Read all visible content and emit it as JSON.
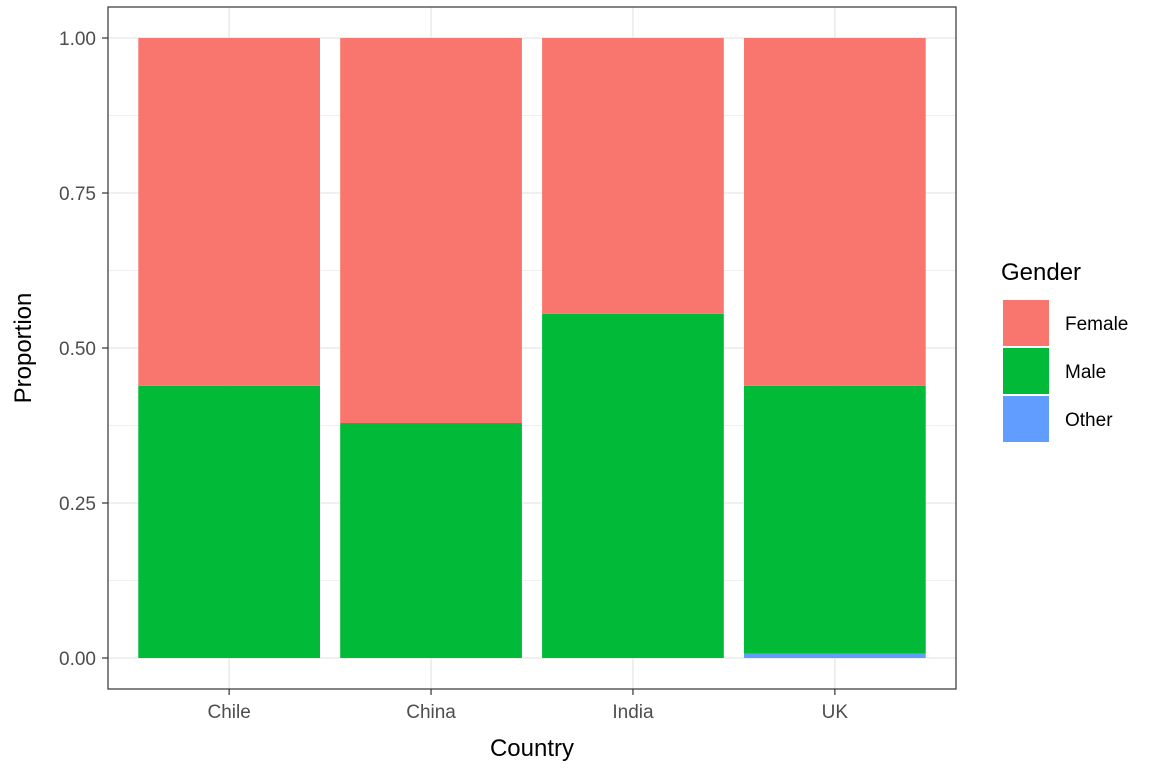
{
  "chart_data": {
    "type": "bar",
    "stacked": true,
    "categories": [
      "Chile",
      "China",
      "India",
      "UK"
    ],
    "series": [
      {
        "name": "Female",
        "color": "#F8766D",
        "values": [
          0.561,
          0.621,
          0.445,
          0.561
        ]
      },
      {
        "name": "Male",
        "color": "#00BA38",
        "values": [
          0.439,
          0.379,
          0.555,
          0.432
        ]
      },
      {
        "name": "Other",
        "color": "#619CFF",
        "values": [
          0.0,
          0.0,
          0.0,
          0.007
        ]
      }
    ],
    "stack_order_bottom_to_top": [
      "Other",
      "Male",
      "Female"
    ],
    "xlabel": "Country",
    "ylabel": "Proportion",
    "ylim": [
      0,
      1.0
    ],
    "yticks": [
      0.0,
      0.25,
      0.5,
      0.75,
      1.0
    ],
    "ytick_labels": [
      "0.00",
      "0.25",
      "0.50",
      "0.75",
      "1.00"
    ],
    "grid": true,
    "legend": {
      "title": "Gender",
      "position": "right",
      "entries": [
        "Female",
        "Male",
        "Other"
      ]
    }
  }
}
